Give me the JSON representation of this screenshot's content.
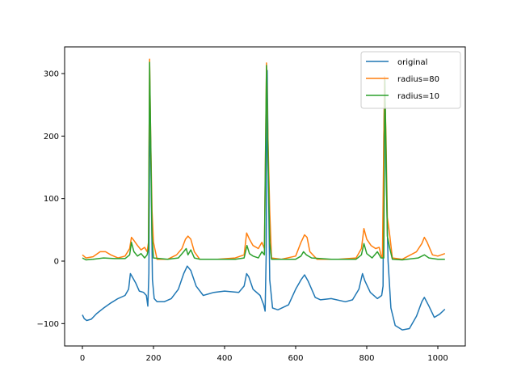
{
  "chart_data": {
    "type": "line",
    "title": "",
    "xlabel": "",
    "ylabel": "",
    "xlim": [
      -50,
      1075
    ],
    "ylim": [
      -133,
      342
    ],
    "grid": false,
    "legend_position": "upper right",
    "x_ticks": [
      0,
      200,
      400,
      600,
      800,
      1000
    ],
    "y_ticks": [
      -100,
      0,
      100,
      200,
      300
    ],
    "x_tick_labels": [
      "0",
      "200",
      "400",
      "600",
      "800",
      "1000"
    ],
    "y_tick_labels": [
      "−100",
      "0",
      "100",
      "200",
      "300"
    ],
    "series": [
      {
        "name": "original",
        "color": "#1f77b4",
        "points": [
          [
            0,
            -86
          ],
          [
            5,
            -92
          ],
          [
            12,
            -95
          ],
          [
            25,
            -93
          ],
          [
            40,
            -84
          ],
          [
            60,
            -75
          ],
          [
            80,
            -67
          ],
          [
            100,
            -60
          ],
          [
            120,
            -55
          ],
          [
            130,
            -45
          ],
          [
            135,
            -20
          ],
          [
            140,
            -25
          ],
          [
            150,
            -35
          ],
          [
            160,
            -48
          ],
          [
            172,
            -50
          ],
          [
            180,
            -55
          ],
          [
            184,
            -72
          ],
          [
            187,
            -20
          ],
          [
            190,
            260
          ],
          [
            193,
            150
          ],
          [
            197,
            -30
          ],
          [
            202,
            -60
          ],
          [
            210,
            -65
          ],
          [
            230,
            -65
          ],
          [
            250,
            -60
          ],
          [
            270,
            -45
          ],
          [
            285,
            -20
          ],
          [
            295,
            -8
          ],
          [
            305,
            -15
          ],
          [
            320,
            -40
          ],
          [
            340,
            -55
          ],
          [
            370,
            -50
          ],
          [
            400,
            -48
          ],
          [
            440,
            -50
          ],
          [
            455,
            -40
          ],
          [
            462,
            -20
          ],
          [
            468,
            -25
          ],
          [
            480,
            -45
          ],
          [
            500,
            -55
          ],
          [
            510,
            -70
          ],
          [
            514,
            -80
          ],
          [
            517,
            10
          ],
          [
            520,
            305
          ],
          [
            523,
            150
          ],
          [
            527,
            -30
          ],
          [
            535,
            -75
          ],
          [
            550,
            -78
          ],
          [
            580,
            -70
          ],
          [
            600,
            -45
          ],
          [
            615,
            -30
          ],
          [
            625,
            -22
          ],
          [
            635,
            -32
          ],
          [
            655,
            -58
          ],
          [
            670,
            -62
          ],
          [
            700,
            -60
          ],
          [
            740,
            -65
          ],
          [
            760,
            -62
          ],
          [
            778,
            -45
          ],
          [
            788,
            -20
          ],
          [
            795,
            -32
          ],
          [
            810,
            -50
          ],
          [
            830,
            -60
          ],
          [
            842,
            -55
          ],
          [
            846,
            -40
          ],
          [
            848,
            200
          ],
          [
            851,
            290
          ],
          [
            854,
            150
          ],
          [
            860,
            0
          ],
          [
            868,
            -75
          ],
          [
            880,
            -103
          ],
          [
            900,
            -110
          ],
          [
            920,
            -108
          ],
          [
            940,
            -88
          ],
          [
            955,
            -65
          ],
          [
            962,
            -58
          ],
          [
            975,
            -72
          ],
          [
            990,
            -90
          ],
          [
            1005,
            -85
          ],
          [
            1020,
            -77
          ]
        ]
      },
      {
        "name": "radius=80",
        "color": "#ff7f0e",
        "points": [
          [
            0,
            10
          ],
          [
            10,
            5
          ],
          [
            30,
            7
          ],
          [
            50,
            15
          ],
          [
            65,
            15
          ],
          [
            80,
            10
          ],
          [
            100,
            5
          ],
          [
            120,
            8
          ],
          [
            133,
            20
          ],
          [
            138,
            38
          ],
          [
            145,
            33
          ],
          [
            155,
            25
          ],
          [
            165,
            18
          ],
          [
            175,
            22
          ],
          [
            182,
            15
          ],
          [
            186,
            30
          ],
          [
            189,
            323
          ],
          [
            192,
            200
          ],
          [
            196,
            80
          ],
          [
            200,
            30
          ],
          [
            210,
            3
          ],
          [
            240,
            3
          ],
          [
            265,
            10
          ],
          [
            280,
            20
          ],
          [
            290,
            35
          ],
          [
            297,
            40
          ],
          [
            305,
            35
          ],
          [
            315,
            15
          ],
          [
            330,
            3
          ],
          [
            380,
            3
          ],
          [
            430,
            5
          ],
          [
            455,
            10
          ],
          [
            462,
            45
          ],
          [
            470,
            35
          ],
          [
            480,
            25
          ],
          [
            495,
            20
          ],
          [
            505,
            30
          ],
          [
            512,
            20
          ],
          [
            518,
            317
          ],
          [
            522,
            200
          ],
          [
            527,
            80
          ],
          [
            532,
            5
          ],
          [
            560,
            3
          ],
          [
            600,
            8
          ],
          [
            615,
            30
          ],
          [
            625,
            42
          ],
          [
            632,
            38
          ],
          [
            640,
            15
          ],
          [
            660,
            3
          ],
          [
            720,
            3
          ],
          [
            770,
            5
          ],
          [
            785,
            20
          ],
          [
            792,
            52
          ],
          [
            800,
            35
          ],
          [
            812,
            25
          ],
          [
            825,
            20
          ],
          [
            835,
            22
          ],
          [
            840,
            10
          ],
          [
            844,
            5
          ],
          [
            850,
            295
          ],
          [
            854,
            200
          ],
          [
            858,
            70
          ],
          [
            865,
            40
          ],
          [
            872,
            5
          ],
          [
            900,
            3
          ],
          [
            940,
            15
          ],
          [
            955,
            28
          ],
          [
            962,
            38
          ],
          [
            970,
            30
          ],
          [
            985,
            10
          ],
          [
            1000,
            8
          ],
          [
            1020,
            12
          ]
        ]
      },
      {
        "name": "radius=10",
        "color": "#2ca02c",
        "points": [
          [
            0,
            5
          ],
          [
            10,
            2
          ],
          [
            30,
            3
          ],
          [
            60,
            5
          ],
          [
            90,
            4
          ],
          [
            120,
            4
          ],
          [
            133,
            10
          ],
          [
            138,
            30
          ],
          [
            145,
            15
          ],
          [
            155,
            8
          ],
          [
            165,
            12
          ],
          [
            175,
            5
          ],
          [
            182,
            10
          ],
          [
            186,
            20
          ],
          [
            189,
            318
          ],
          [
            192,
            200
          ],
          [
            196,
            40
          ],
          [
            200,
            5
          ],
          [
            240,
            3
          ],
          [
            270,
            5
          ],
          [
            285,
            15
          ],
          [
            292,
            20
          ],
          [
            297,
            10
          ],
          [
            305,
            18
          ],
          [
            315,
            5
          ],
          [
            330,
            3
          ],
          [
            430,
            3
          ],
          [
            455,
            5
          ],
          [
            463,
            25
          ],
          [
            470,
            12
          ],
          [
            480,
            8
          ],
          [
            495,
            5
          ],
          [
            505,
            15
          ],
          [
            512,
            10
          ],
          [
            518,
            313
          ],
          [
            522,
            180
          ],
          [
            527,
            30
          ],
          [
            532,
            3
          ],
          [
            600,
            3
          ],
          [
            615,
            8
          ],
          [
            622,
            15
          ],
          [
            630,
            10
          ],
          [
            645,
            5
          ],
          [
            700,
            3
          ],
          [
            770,
            3
          ],
          [
            785,
            10
          ],
          [
            792,
            28
          ],
          [
            800,
            12
          ],
          [
            815,
            5
          ],
          [
            830,
            15
          ],
          [
            840,
            5
          ],
          [
            848,
            5
          ],
          [
            851,
            290
          ],
          [
            854,
            180
          ],
          [
            858,
            40
          ],
          [
            865,
            20
          ],
          [
            872,
            3
          ],
          [
            900,
            2
          ],
          [
            945,
            5
          ],
          [
            962,
            10
          ],
          [
            975,
            5
          ],
          [
            1000,
            3
          ],
          [
            1020,
            3
          ]
        ]
      }
    ]
  },
  "legend": {
    "items": [
      {
        "label": "original",
        "color": "#1f77b4"
      },
      {
        "label": "radius=80",
        "color": "#ff7f0e"
      },
      {
        "label": "radius=10",
        "color": "#2ca02c"
      }
    ]
  }
}
